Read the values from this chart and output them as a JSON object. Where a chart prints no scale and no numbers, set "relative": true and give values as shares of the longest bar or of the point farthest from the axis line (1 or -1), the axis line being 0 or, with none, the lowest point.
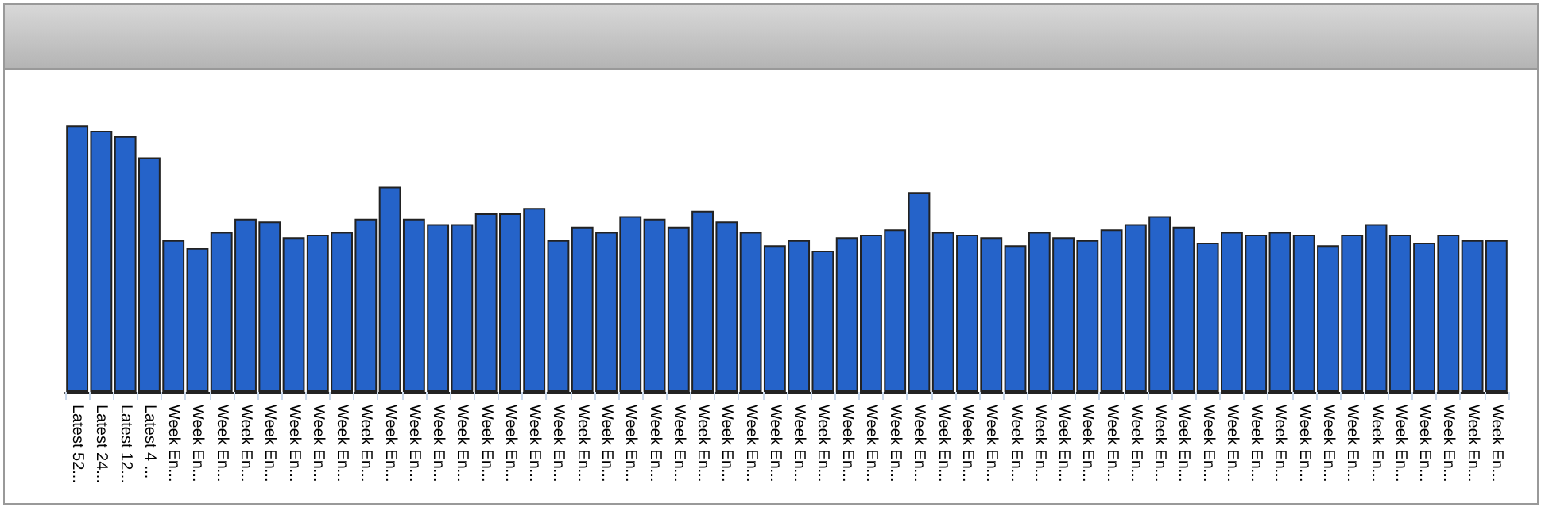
{
  "chart_data": {
    "type": "bar",
    "relative": true,
    "categories": [
      "Latest 52...",
      "Latest 24...",
      "Latest 12...",
      "Latest 4 ...",
      "Week En...",
      "Week En...",
      "Week En...",
      "Week En...",
      "Week En...",
      "Week En...",
      "Week En...",
      "Week En...",
      "Week En...",
      "Week En...",
      "Week En...",
      "Week En...",
      "Week En...",
      "Week En...",
      "Week En...",
      "Week En...",
      "Week En...",
      "Week En...",
      "Week En...",
      "Week En...",
      "Week En...",
      "Week En...",
      "Week En...",
      "Week En...",
      "Week En...",
      "Week En...",
      "Week En...",
      "Week En...",
      "Week En...",
      "Week En...",
      "Week En...",
      "Week En...",
      "Week En...",
      "Week En...",
      "Week En...",
      "Week En...",
      "Week En...",
      "Week En...",
      "Week En...",
      "Week En...",
      "Week En...",
      "Week En...",
      "Week En...",
      "Week En...",
      "Week En...",
      "Week En...",
      "Week En...",
      "Week En...",
      "Week En...",
      "Week En...",
      "Week En...",
      "Week En...",
      "Week En...",
      "Week En...",
      "Week En...",
      "Week En..."
    ],
    "values": [
      1,
      0.98,
      0.96,
      0.88,
      0.57,
      0.54,
      0.6,
      0.65,
      0.64,
      0.58,
      0.59,
      0.6,
      0.65,
      0.77,
      0.65,
      0.63,
      0.63,
      0.67,
      0.67,
      0.69,
      0.57,
      0.62,
      0.6,
      0.66,
      0.65,
      0.62,
      0.68,
      0.64,
      0.6,
      0.55,
      0.57,
      0.53,
      0.58,
      0.59,
      0.61,
      0.75,
      0.6,
      0.59,
      0.58,
      0.55,
      0.6,
      0.58,
      0.57,
      0.61,
      0.63,
      0.66,
      0.62,
      0.56,
      0.6,
      0.59,
      0.6,
      0.59,
      0.55,
      0.59,
      0.63,
      0.59,
      0.56,
      0.59,
      0.57,
      0.57
    ],
    "color": "#2563c9"
  }
}
